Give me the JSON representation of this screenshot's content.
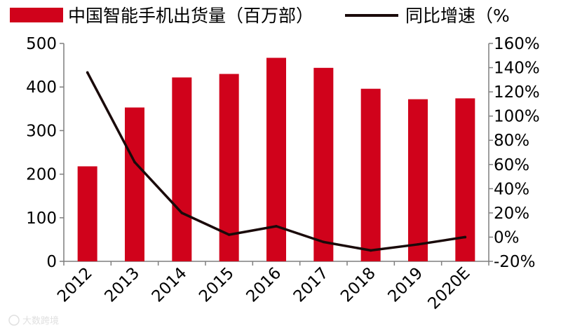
{
  "chart_data": {
    "type": "bar",
    "categories": [
      "2012",
      "2013",
      "2014",
      "2015",
      "2016",
      "2017",
      "2018",
      "2019",
      "2020E"
    ],
    "series": [
      {
        "name": "中国智能手机出货量（百万部）",
        "type": "bar",
        "axis": "left",
        "color": "#d0021b",
        "values": [
          218,
          353,
          422,
          430,
          467,
          444,
          396,
          372,
          374
        ]
      },
      {
        "name": "同比增速（%",
        "type": "line",
        "axis": "right",
        "color": "#1a0a0a",
        "values": [
          136,
          62,
          20,
          2,
          9,
          -4,
          -11,
          -6,
          0
        ]
      }
    ],
    "y_left": {
      "min": 0,
      "max": 500,
      "ticks": [
        "0",
        "100",
        "200",
        "300",
        "400",
        "500"
      ]
    },
    "y_right": {
      "min": -20,
      "max": 160,
      "ticks": [
        "-20%",
        "0%",
        "20%",
        "40%",
        "60%",
        "80%",
        "100%",
        "120%",
        "140%",
        "160%"
      ]
    },
    "grid": false,
    "legend_position": "top"
  },
  "watermark": "大数跨境"
}
